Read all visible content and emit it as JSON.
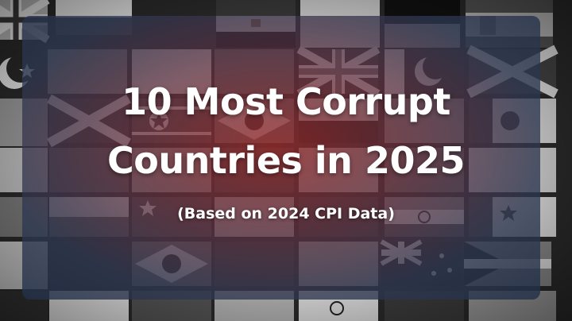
{
  "thumbnail": {
    "title_line1": "10 Most Corrupt",
    "title_line2": "Countries in 2025",
    "subtitle": "(Based on 2024 CPI Data)"
  },
  "colors": {
    "panel_center": "#96282a",
    "panel_edge": "#233048",
    "text": "#ffffff"
  }
}
